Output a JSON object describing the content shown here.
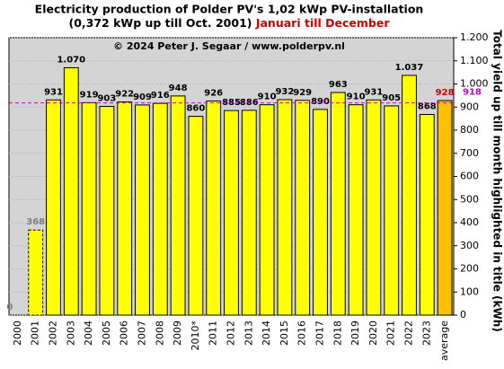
{
  "chart_data": {
    "type": "bar",
    "title": "Electricity production  of Polder PV's 1,02 kWp PV-installation",
    "subtitle": "(0,372 kWp up till Oct. 2001)",
    "subtitle_highlight": "Januari till December",
    "annotation": "© 2024 Peter J. Segaar / www.polderpv.nl",
    "y_label": "Total yield up till month highlighted in title (kWh)",
    "categories": [
      "2000",
      "2001",
      "2002",
      "2003",
      "2004",
      "2005",
      "2006",
      "2007",
      "2008",
      "2009",
      "2010*",
      "2011",
      "2012",
      "2013",
      "2014",
      "2015",
      "2016",
      "2017",
      "2018",
      "2019",
      "2020",
      "2021",
      "2022",
      "2023",
      "average"
    ],
    "values": [
      0,
      368,
      931,
      1070,
      919,
      903,
      922,
      909,
      916,
      948,
      860,
      926,
      885,
      886,
      910,
      932,
      929,
      890,
      963,
      910,
      931,
      905,
      1037,
      868,
      928
    ],
    "value_labels": [
      "0",
      "368",
      "931",
      "1.070",
      "919",
      "903",
      "922",
      "909",
      "916",
      "948",
      "860",
      "926",
      "885",
      "886",
      "910",
      "932",
      "929",
      "890",
      "963",
      "910",
      "931",
      "905",
      "1.037",
      "868",
      "928"
    ],
    "color": "#ffff00",
    "average_color": "#ffc000",
    "average_label_color": "#cc0000",
    "reference_line": {
      "value": 918,
      "color": "#cc00cc"
    },
    "ylim": [
      0,
      1200
    ],
    "yticks": [
      0,
      100,
      200,
      300,
      400,
      500,
      600,
      700,
      800,
      900,
      {
        "value": 1000,
        "label": "1.000"
      },
      {
        "value": 1100,
        "label": "1.100"
      },
      {
        "value": 1200,
        "label": "1.200"
      }
    ],
    "grid": true
  }
}
